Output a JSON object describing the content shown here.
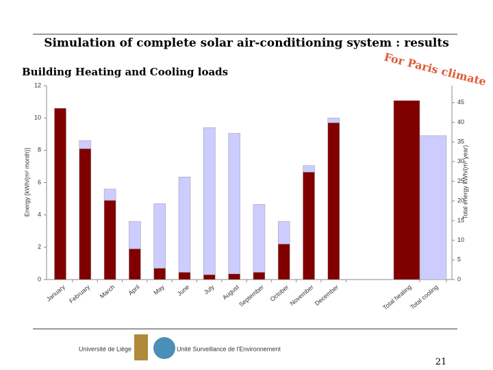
{
  "chart_data": {
    "type": "bar",
    "title": "Simulation of complete solar air-conditioning system : results",
    "subtitle": "Building Heating and Cooling loads",
    "annotation": "For Paris climate",
    "y_label": "Energy [kWh/(m² month)]",
    "y2_label": "Total energy kWh/(m² year)",
    "categories": [
      "January",
      "February",
      "March",
      "April",
      "May",
      "June",
      "July",
      "August",
      "September",
      "October",
      "November",
      "December",
      "Total heating",
      "Total cooling"
    ],
    "series": [
      {
        "color": "#800000",
        "values": [
          10.6,
          8.1,
          4.9,
          1.9,
          0.7,
          0.45,
          0.3,
          0.35,
          0.45,
          2.2,
          6.65,
          9.7,
          null,
          null
        ]
      },
      {
        "color": "#ccccff",
        "values": [
          0,
          0.5,
          0.7,
          1.7,
          4.0,
          5.9,
          9.1,
          8.7,
          4.2,
          1.4,
          0.4,
          0.3,
          null,
          null
        ]
      },
      {
        "color": "#800000",
        "axis": "y2",
        "values": [
          null,
          null,
          null,
          null,
          null,
          null,
          null,
          null,
          null,
          null,
          null,
          null,
          45.5,
          null
        ]
      },
      {
        "color": "#ccccff",
        "axis": "y2",
        "values": [
          null,
          null,
          null,
          null,
          null,
          null,
          null,
          null,
          null,
          null,
          null,
          null,
          null,
          36.6
        ]
      }
    ],
    "ylim": [
      0,
      12
    ],
    "yticks": [
      0,
      2,
      4,
      6,
      8,
      10,
      12
    ],
    "y2lim": [
      0,
      50
    ],
    "y2ticks": [
      0,
      5,
      10,
      15,
      20,
      25,
      30,
      35,
      40,
      45
    ],
    "footer": {
      "logo1": "Université de Liège",
      "logo2": "Unité Surveillance de l'Environnement",
      "page": "21"
    }
  }
}
